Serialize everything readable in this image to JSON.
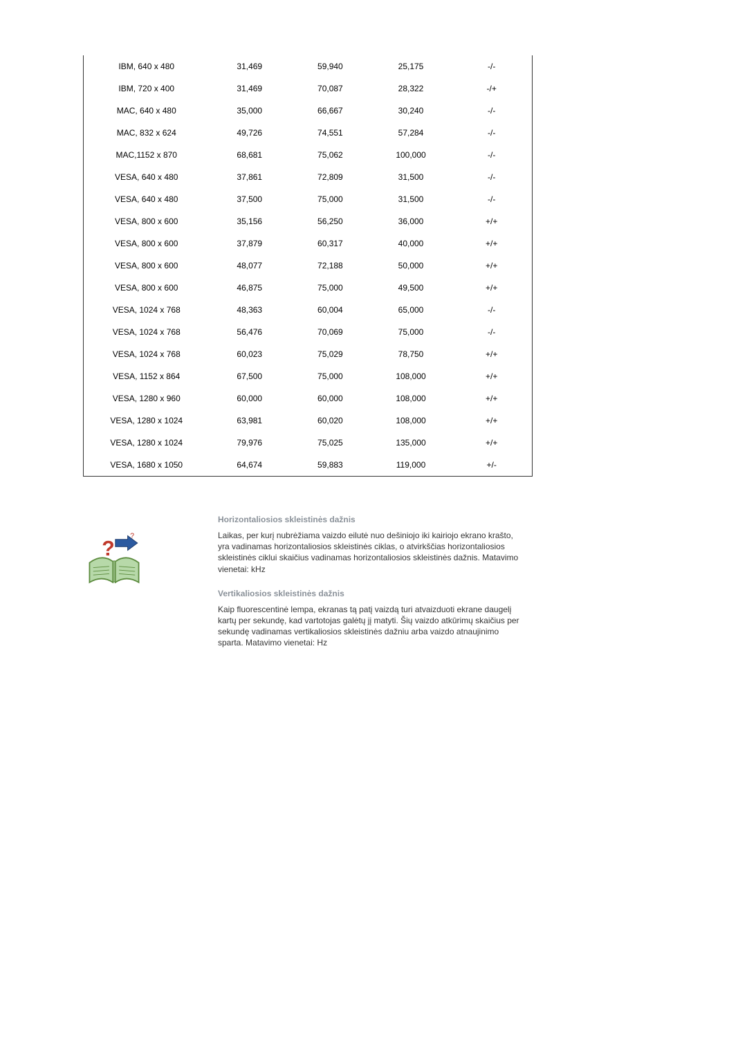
{
  "table": {
    "rows": [
      {
        "mode": "IBM, 640 x 480",
        "hfreq": "31,469",
        "vfreq": "59,940",
        "clock": "25,175",
        "sync": "-/-"
      },
      {
        "mode": "IBM, 720 x 400",
        "hfreq": "31,469",
        "vfreq": "70,087",
        "clock": "28,322",
        "sync": "-/+"
      },
      {
        "mode": "MAC, 640 x 480",
        "hfreq": "35,000",
        "vfreq": "66,667",
        "clock": "30,240",
        "sync": "-/-"
      },
      {
        "mode": "MAC, 832 x 624",
        "hfreq": "49,726",
        "vfreq": "74,551",
        "clock": "57,284",
        "sync": "-/-"
      },
      {
        "mode": "MAC,1152 x 870",
        "hfreq": "68,681",
        "vfreq": "75,062",
        "clock": "100,000",
        "sync": "-/-"
      },
      {
        "mode": "VESA, 640 x 480",
        "hfreq": "37,861",
        "vfreq": "72,809",
        "clock": "31,500",
        "sync": "-/-"
      },
      {
        "mode": "VESA, 640 x 480",
        "hfreq": "37,500",
        "vfreq": "75,000",
        "clock": "31,500",
        "sync": "-/-"
      },
      {
        "mode": "VESA, 800 x 600",
        "hfreq": "35,156",
        "vfreq": "56,250",
        "clock": "36,000",
        "sync": "+/+"
      },
      {
        "mode": "VESA, 800 x 600",
        "hfreq": "37,879",
        "vfreq": "60,317",
        "clock": "40,000",
        "sync": "+/+"
      },
      {
        "mode": "VESA, 800 x 600",
        "hfreq": "48,077",
        "vfreq": "72,188",
        "clock": "50,000",
        "sync": "+/+"
      },
      {
        "mode": "VESA, 800 x 600",
        "hfreq": "46,875",
        "vfreq": "75,000",
        "clock": "49,500",
        "sync": "+/+"
      },
      {
        "mode": "VESA, 1024 x 768",
        "hfreq": "48,363",
        "vfreq": "60,004",
        "clock": "65,000",
        "sync": "-/-"
      },
      {
        "mode": "VESA, 1024 x 768",
        "hfreq": "56,476",
        "vfreq": "70,069",
        "clock": "75,000",
        "sync": "-/-"
      },
      {
        "mode": "VESA, 1024 x 768",
        "hfreq": "60,023",
        "vfreq": "75,029",
        "clock": "78,750",
        "sync": "+/+"
      },
      {
        "mode": "VESA, 1152 x 864",
        "hfreq": "67,500",
        "vfreq": "75,000",
        "clock": "108,000",
        "sync": "+/+"
      },
      {
        "mode": "VESA, 1280 x 960",
        "hfreq": "60,000",
        "vfreq": "60,000",
        "clock": "108,000",
        "sync": "+/+"
      },
      {
        "mode": "VESA, 1280 x 1024",
        "hfreq": "63,981",
        "vfreq": "60,020",
        "clock": "108,000",
        "sync": "+/+"
      },
      {
        "mode": "VESA, 1280 x 1024",
        "hfreq": "79,976",
        "vfreq": "75,025",
        "clock": "135,000",
        "sync": "+/+"
      },
      {
        "mode": "VESA, 1680 x 1050",
        "hfreq": "64,674",
        "vfreq": "59,883",
        "clock": "119,000",
        "sync": "+/-"
      }
    ],
    "column_align": [
      "center",
      "center",
      "center",
      "center",
      "center"
    ],
    "font_size": 12,
    "text_color": "#000000",
    "border_color": "#333333"
  },
  "info": {
    "heading1": "Horizontaliosios skleistinės dažnis",
    "para1": "Laikas, per kurį nubrėžiama vaizdo eilutė nuo dešiniojo iki kairiojo ekrano krašto, yra vadinamas horizontaliosios skleistinės ciklas, o atvirkščias horizontaliosios skleistinės ciklui skaičius vadinamas horizontaliosios skleistinės dažnis. Matavimo vienetai: kHz",
    "heading2": "Vertikaliosios skleistinės dažnis",
    "para2": "Kaip fluorescentinė lempa, ekranas tą patį vaizdą turi atvaizduoti ekrane daugelį kartų per sekundę, kad vartotojas galėtų jį matyti. Šių vaizdo atkūrimų skaičius per sekundę vadinamas vertikaliosios skleistinės dažniu arba vaizdo atnaujinimo sparta. Matavimo vienetai: Hz"
  },
  "icon": {
    "book_fill": "#b7d9a9",
    "book_stroke": "#5a8a3c",
    "qmark_color": "#c0392b",
    "arrow_fill": "#2c5aa0"
  },
  "colors": {
    "heading_color": "#8a9199",
    "body_text": "#333333",
    "background": "#ffffff"
  }
}
